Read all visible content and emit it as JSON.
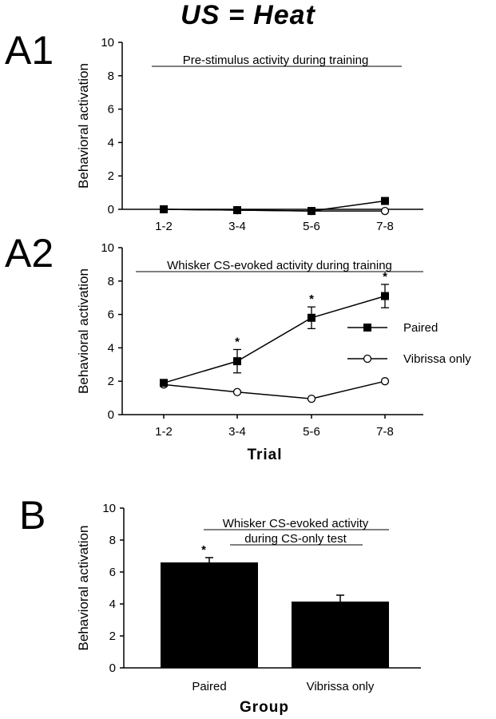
{
  "figure_title": "US = Heat",
  "chart_data": [
    {
      "panel_label": "A1",
      "type": "line",
      "title": "Pre-stimulus  activity  during  training",
      "ylabel": "Behavioral  activation",
      "xlabel": "",
      "categories": [
        "1-2",
        "3-4",
        "5-6",
        "7-8"
      ],
      "ylim": [
        0,
        10
      ],
      "yticks": [
        "0",
        "2",
        "4",
        "6",
        "8",
        "10"
      ],
      "series": [
        {
          "marker": "filled-square",
          "values": [
            0.0,
            -0.05,
            -0.1,
            0.5
          ]
        },
        {
          "marker": "open-circle",
          "values": [
            0.0,
            -0.05,
            -0.1,
            -0.1
          ]
        }
      ],
      "legend": []
    },
    {
      "panel_label": "A2",
      "type": "line",
      "title": "Whisker  CS-evoked  activity  during  training",
      "ylabel": "Behavioral  activation",
      "xlabel": "Trial",
      "categories": [
        "1-2",
        "3-4",
        "5-6",
        "7-8"
      ],
      "ylim": [
        0,
        10
      ],
      "yticks": [
        "0",
        "2",
        "4",
        "6",
        "8",
        "10"
      ],
      "series": [
        {
          "name": "Paired",
          "marker": "filled-square",
          "values": [
            1.9,
            3.2,
            5.8,
            7.1
          ],
          "errors": [
            0,
            0.7,
            0.65,
            0.7
          ],
          "significant": [
            false,
            true,
            true,
            true
          ]
        },
        {
          "name": "Vibrissa  only",
          "marker": "open-circle",
          "values": [
            1.8,
            1.35,
            0.95,
            2.0
          ]
        }
      ],
      "legend": [
        "Paired",
        "Vibrissa  only"
      ],
      "legend_position": "right",
      "significance_marker": "*"
    },
    {
      "panel_label": "B",
      "type": "bar",
      "title": "Whisker  CS-evoked  activity",
      "subtitle": "during  CS-only  test",
      "ylabel": "Behavioral  activation",
      "xlabel": "Group",
      "categories": [
        "Paired",
        "Vibrissa only"
      ],
      "values": [
        6.6,
        4.15
      ],
      "errors": [
        0.3,
        0.4
      ],
      "significant": [
        true,
        false
      ],
      "significance_marker": "*",
      "ylim": [
        0,
        10
      ],
      "yticks": [
        "0",
        "2",
        "4",
        "6",
        "8",
        "10"
      ],
      "bar_color": "#000000"
    }
  ]
}
